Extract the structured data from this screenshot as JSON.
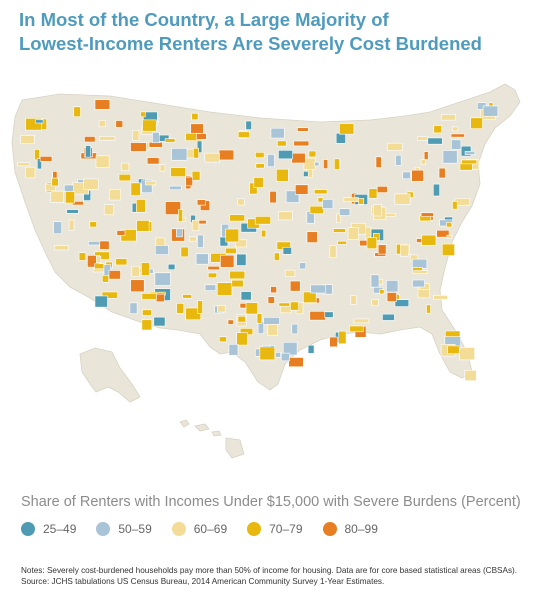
{
  "title_lines": [
    "In Most of the Country, a Large Majority of",
    "Lowest-Income Renters Are Severely Cost Burdened"
  ],
  "legend": {
    "title": "Share of Renters with Incomes Under $15,000 with Severe Burdens (Percent)",
    "items": [
      {
        "label": "25–49",
        "color": "#4f9bb3"
      },
      {
        "label": "50–59",
        "color": "#a9c4d6"
      },
      {
        "label": "60–69",
        "color": "#f3dc95"
      },
      {
        "label": "70–79",
        "color": "#e8b80f"
      },
      {
        "label": "80–99",
        "color": "#e87e22"
      }
    ]
  },
  "map_colors": {
    "base": "#e9e6d9",
    "border": "#ffffff"
  },
  "notes": [
    "Notes: Severely cost-burdened households pay more than 50% of income for housing. Data are for core based statistical areas (CBSAs).",
    "Source: JCHS tabulations US Census Bureau, 2014 American Community Survey 1-Year Estimates."
  ]
}
